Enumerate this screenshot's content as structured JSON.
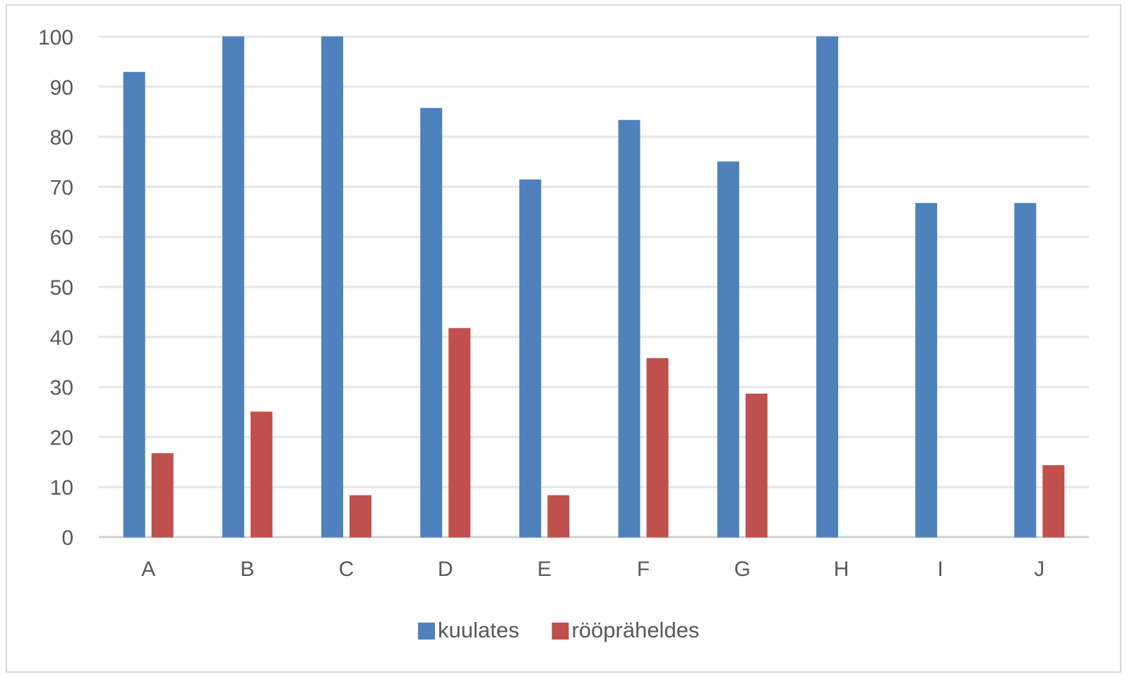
{
  "chart_data": {
    "type": "bar",
    "categories": [
      "A",
      "B",
      "C",
      "D",
      "E",
      "F",
      "G",
      "H",
      "I",
      "J"
    ],
    "series": [
      {
        "name": "kuulates",
        "color": "#4f81bd",
        "values": [
          92.9,
          100,
          100,
          85.7,
          71.4,
          83.3,
          75,
          100,
          66.7,
          66.7
        ]
      },
      {
        "name": "rööpräheldes",
        "color": "#c0504d",
        "values": [
          16.7,
          25,
          8.3,
          41.7,
          8.3,
          35.7,
          28.6,
          0,
          0,
          14.3
        ]
      }
    ],
    "title": "",
    "xlabel": "",
    "ylabel": "",
    "ylim": [
      0,
      100
    ],
    "yticks": [
      "0",
      "10",
      "20",
      "30",
      "40",
      "50",
      "60",
      "70",
      "80",
      "90",
      "100"
    ],
    "grid": true,
    "legend": "bottom"
  }
}
